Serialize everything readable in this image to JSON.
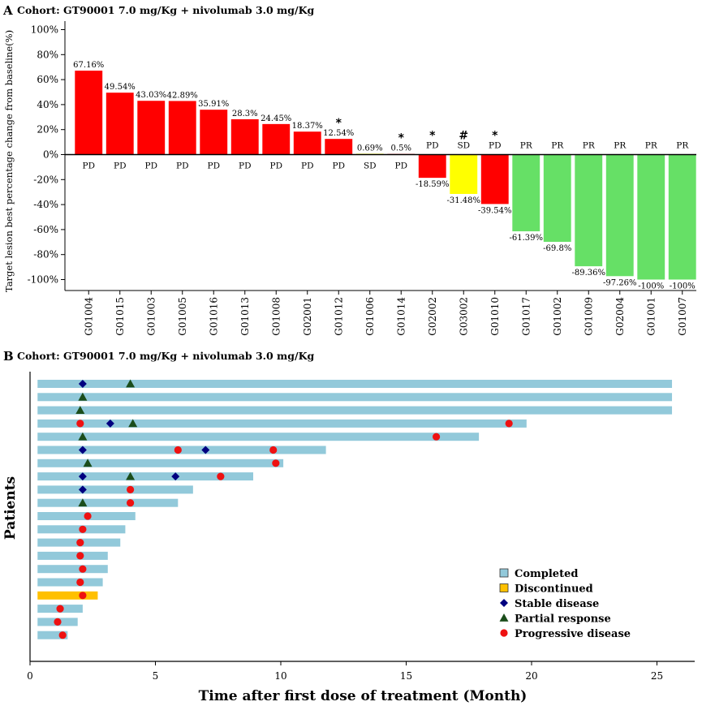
{
  "chart_data": [
    {
      "type": "bar",
      "panel_label": "A",
      "title": "Cohort: GT90001 7.0 mg/Kg + nivolumab 3.0 mg/Kg",
      "ylabel": "Target lesion best percentage change from baseline(%)",
      "ylim": [
        -110,
        105
      ],
      "yticks": [
        "100%",
        "80%",
        "60%",
        "40%",
        "20%",
        "0%",
        "-20%",
        "-40%",
        "-60%",
        "-80%",
        "-100%"
      ],
      "ytick_values": [
        100,
        80,
        60,
        40,
        20,
        0,
        -20,
        -40,
        -60,
        -80,
        -100
      ],
      "categories": [
        "G01004",
        "G01015",
        "G01003",
        "G01005",
        "G01016",
        "G01013",
        "G01008",
        "G02001",
        "G01012",
        "G01006",
        "G01014",
        "G02002",
        "G03002",
        "G01010",
        "G01017",
        "G01002",
        "G01009",
        "G02004",
        "G01001",
        "G01007"
      ],
      "values": [
        67.16,
        49.54,
        43.03,
        42.89,
        35.91,
        28.3,
        24.45,
        18.37,
        12.54,
        0.69,
        0.5,
        -18.59,
        -31.48,
        -39.54,
        -61.39,
        -69.8,
        -89.36,
        -97.26,
        -100,
        -100
      ],
      "value_labels": [
        "67.16%",
        "49.54%",
        "43.03%",
        "42.89%",
        "35.91%",
        "28.3%",
        "24.45%",
        "18.37%",
        "12.54%",
        "0.69%",
        "0.5%",
        "-18.59%",
        "-31.48%",
        "-39.54%",
        "-61.39%",
        "-69.8%",
        "-89.36%",
        "-97.26%",
        "-100%",
        "-100%"
      ],
      "responses": [
        "PD",
        "PD",
        "PD",
        "PD",
        "PD",
        "PD",
        "PD",
        "PD",
        "PD",
        "SD",
        "PD",
        "PD",
        "SD",
        "PD",
        "PR",
        "PR",
        "PR",
        "PR",
        "PR",
        "PR"
      ],
      "annotations": [
        "",
        "",
        "",
        "",
        "",
        "",
        "",
        "",
        "*",
        "",
        "*",
        "*",
        "#",
        "*",
        "",
        "",
        "",
        "",
        "",
        ""
      ],
      "colors": {
        "PD": "#ff0000",
        "SD": "#ffff00",
        "PR": "#66e066"
      }
    },
    {
      "type": "swimmer",
      "panel_label": "B",
      "title": "Cohort: GT90001 7.0 mg/Kg + nivolumab 3.0 mg/Kg",
      "xlabel": "Time after first dose of treatment (Month)",
      "ylabel": "Patients",
      "xlim": [
        0,
        26.5
      ],
      "xticks": [
        "0",
        "5",
        "10",
        "15",
        "20",
        "25"
      ],
      "xtick_values": [
        0,
        5,
        10,
        15,
        20,
        25
      ],
      "bar_start": 0.3,
      "patients": [
        {
          "end": 25.6,
          "status": "completed",
          "stable": [
            2.1
          ],
          "partial": [
            4.0
          ],
          "progressive": []
        },
        {
          "end": 25.6,
          "status": "completed",
          "stable": [],
          "partial": [
            2.1
          ],
          "progressive": []
        },
        {
          "end": 25.6,
          "status": "completed",
          "stable": [],
          "partial": [
            2.0
          ],
          "progressive": []
        },
        {
          "end": 19.8,
          "status": "completed",
          "stable": [
            3.2
          ],
          "partial": [
            4.1
          ],
          "progressive": [
            2.0,
            19.1
          ]
        },
        {
          "end": 17.9,
          "status": "completed",
          "stable": [],
          "partial": [
            2.1
          ],
          "progressive": [
            16.2
          ]
        },
        {
          "end": 11.8,
          "status": "completed",
          "stable": [
            2.1,
            7.0
          ],
          "partial": [],
          "progressive": [
            5.9,
            9.7
          ]
        },
        {
          "end": 10.1,
          "status": "completed",
          "stable": [],
          "partial": [
            2.3
          ],
          "progressive": [
            9.8
          ]
        },
        {
          "end": 8.9,
          "status": "completed",
          "stable": [
            2.1,
            5.8
          ],
          "partial": [
            4.0
          ],
          "progressive": [
            7.6
          ]
        },
        {
          "end": 6.5,
          "status": "completed",
          "stable": [
            2.1
          ],
          "partial": [],
          "progressive": [
            4.0
          ]
        },
        {
          "end": 5.9,
          "status": "completed",
          "stable": [],
          "partial": [
            2.1
          ],
          "progressive": [
            4.0
          ]
        },
        {
          "end": 4.2,
          "status": "completed",
          "stable": [],
          "partial": [],
          "progressive": [
            2.3
          ]
        },
        {
          "end": 3.8,
          "status": "completed",
          "stable": [],
          "partial": [],
          "progressive": [
            2.1
          ]
        },
        {
          "end": 3.6,
          "status": "completed",
          "stable": [],
          "partial": [],
          "progressive": [
            2.0
          ]
        },
        {
          "end": 3.1,
          "status": "completed",
          "stable": [],
          "partial": [],
          "progressive": [
            2.0
          ]
        },
        {
          "end": 3.1,
          "status": "completed",
          "stable": [],
          "partial": [],
          "progressive": [
            2.1
          ]
        },
        {
          "end": 2.9,
          "status": "completed",
          "stable": [],
          "partial": [],
          "progressive": [
            2.0
          ]
        },
        {
          "end": 2.7,
          "status": "discontinued",
          "stable": [],
          "partial": [],
          "progressive": [
            2.1
          ]
        },
        {
          "end": 2.1,
          "status": "completed",
          "stable": [],
          "partial": [],
          "progressive": [
            1.2
          ]
        },
        {
          "end": 1.9,
          "status": "completed",
          "stable": [],
          "partial": [],
          "progressive": [
            1.1
          ]
        },
        {
          "end": 1.5,
          "status": "completed",
          "stable": [],
          "partial": [],
          "progressive": [
            1.3
          ]
        }
      ],
      "legend": [
        "Completed",
        "Discontinued",
        "Stable disease",
        "Partial response",
        "Progressive disease"
      ],
      "legend_placement": "bottom-right",
      "colors": {
        "completed": "#92c9da",
        "discontinued": "#ffc000",
        "stable": "#000080",
        "partial": "#1b4d1b",
        "progressive": "#ee1111"
      }
    }
  ]
}
